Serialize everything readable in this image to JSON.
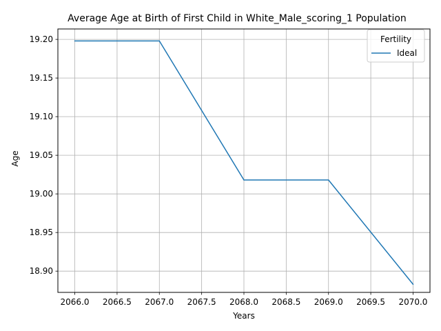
{
  "chart_data": {
    "type": "line",
    "title": "Average Age at Birth of First Child in White_Male_scoring_1 Population",
    "xlabel": "Years",
    "ylabel": "Age",
    "x": [
      2066,
      2067,
      2068,
      2069,
      2070
    ],
    "series": [
      {
        "name": "Ideal",
        "color": "#1f77b4",
        "values": [
          19.198,
          19.198,
          19.018,
          19.018,
          18.883
        ]
      }
    ],
    "xlim": [
      2065.8,
      2070.2
    ],
    "ylim": [
      18.8725,
      19.2135
    ],
    "xticks": [
      2066.0,
      2066.5,
      2067.0,
      2067.5,
      2068.0,
      2068.5,
      2069.0,
      2069.5,
      2070.0
    ],
    "xtick_labels": [
      "2066.0",
      "2066.5",
      "2067.0",
      "2067.5",
      "2068.0",
      "2068.5",
      "2069.0",
      "2069.5",
      "2070.0"
    ],
    "yticks": [
      18.9,
      18.95,
      19.0,
      19.05,
      19.1,
      19.15,
      19.2
    ],
    "ytick_labels": [
      "18.90",
      "18.95",
      "19.00",
      "19.05",
      "19.10",
      "19.15",
      "19.20"
    ],
    "grid": true,
    "legend": {
      "title": "Fertility",
      "placement": "top-right"
    }
  }
}
